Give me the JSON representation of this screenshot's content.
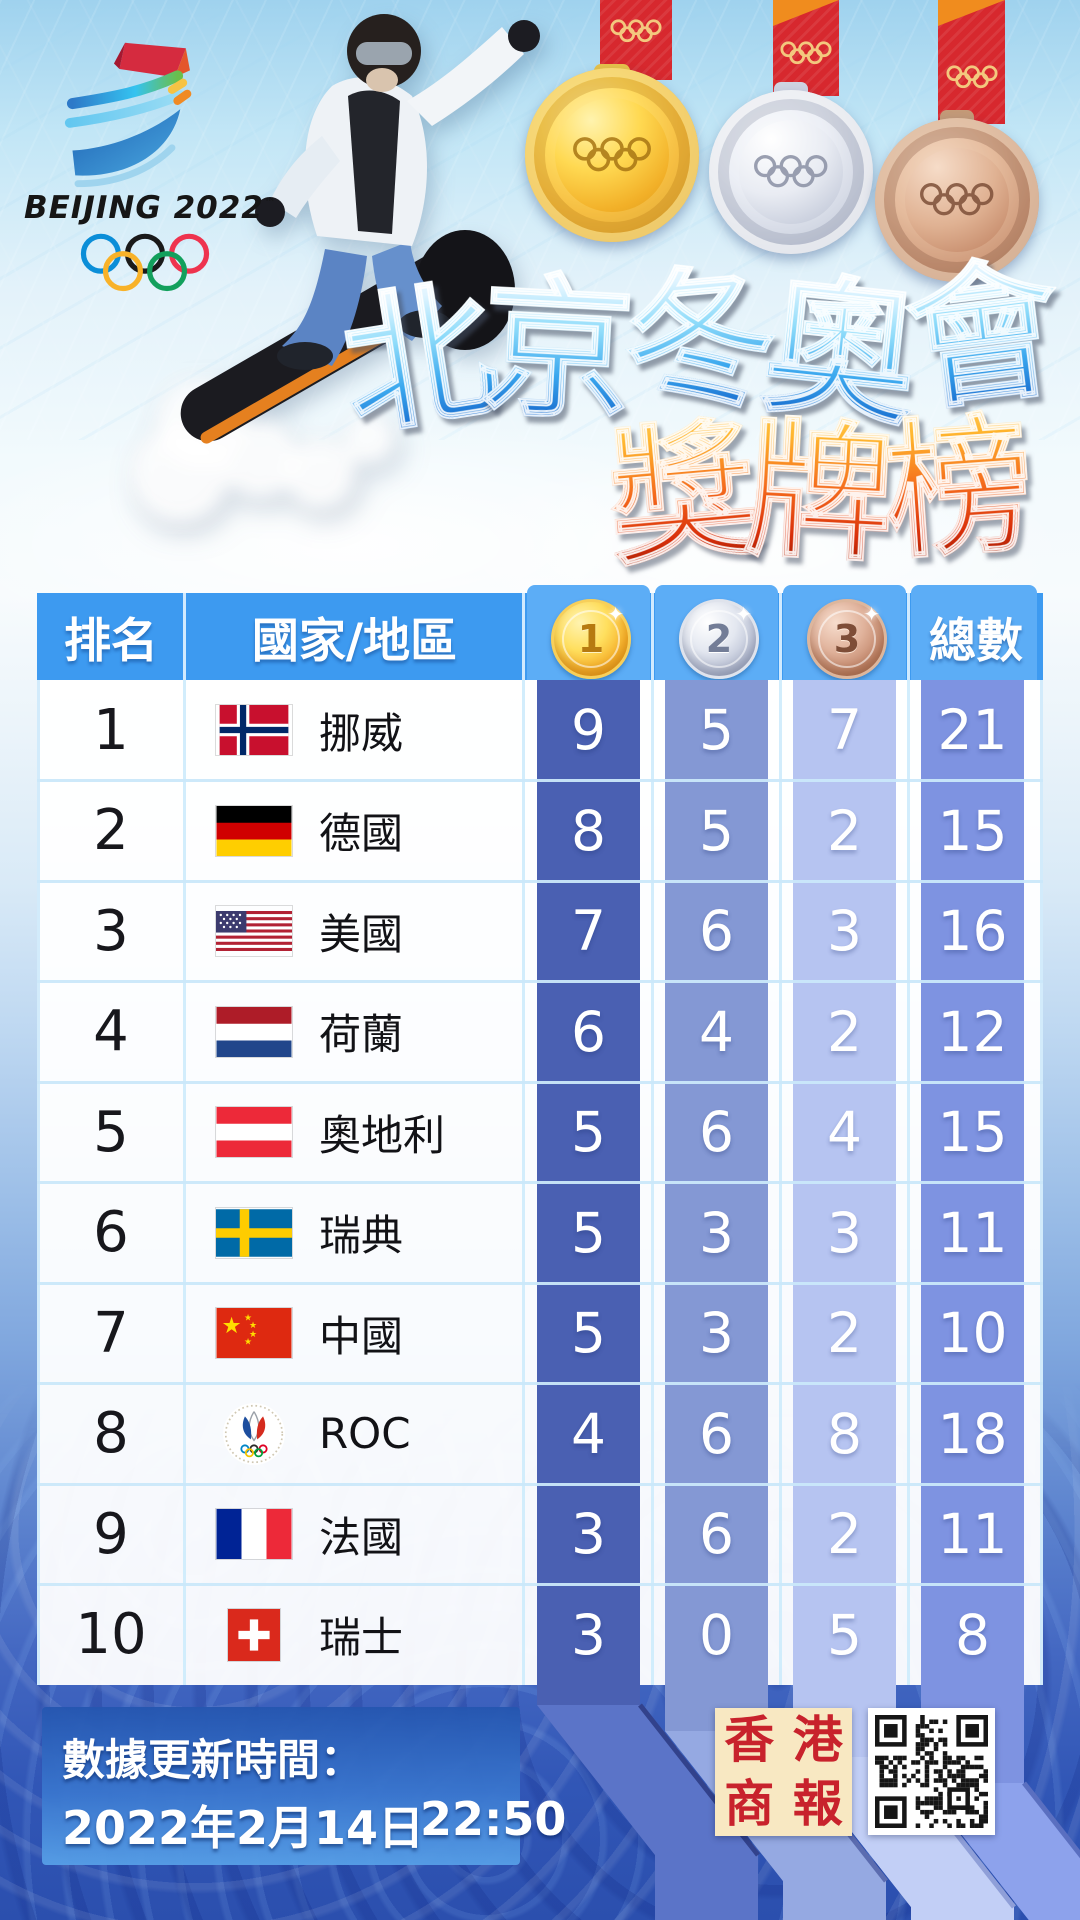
{
  "brand": {
    "name": "BEIJING 2022",
    "tm": "™"
  },
  "title": {
    "line1": "北京冬奧會",
    "line2": "獎牌榜"
  },
  "table_headers": {
    "rank": "排名",
    "country": "國家/地區",
    "gold_label": "1",
    "silver_label": "2",
    "bronze_label": "3",
    "total": "總數"
  },
  "chart_data": {
    "type": "table",
    "title": "北京冬奧會獎牌榜",
    "columns": [
      "排名",
      "國家/地區",
      "金牌",
      "銀牌",
      "銅牌",
      "總數"
    ],
    "rows": [
      {
        "rank": "1",
        "country": "挪威",
        "flag": "norway",
        "gold": 9,
        "silver": 5,
        "bronze": 7,
        "total": 21
      },
      {
        "rank": "2",
        "country": "德國",
        "flag": "germany",
        "gold": 8,
        "silver": 5,
        "bronze": 2,
        "total": 15
      },
      {
        "rank": "3",
        "country": "美國",
        "flag": "usa",
        "gold": 7,
        "silver": 6,
        "bronze": 3,
        "total": 16
      },
      {
        "rank": "4",
        "country": "荷蘭",
        "flag": "netherlands",
        "gold": 6,
        "silver": 4,
        "bronze": 2,
        "total": 12
      },
      {
        "rank": "5",
        "country": "奧地利",
        "flag": "austria",
        "gold": 5,
        "silver": 6,
        "bronze": 4,
        "total": 15
      },
      {
        "rank": "6",
        "country": "瑞典",
        "flag": "sweden",
        "gold": 5,
        "silver": 3,
        "bronze": 3,
        "total": 11
      },
      {
        "rank": "7",
        "country": "中國",
        "flag": "china",
        "gold": 5,
        "silver": 3,
        "bronze": 2,
        "total": 10
      },
      {
        "rank": "8",
        "country": "ROC",
        "flag": "roc",
        "gold": 4,
        "silver": 6,
        "bronze": 8,
        "total": 18
      },
      {
        "rank": "9",
        "country": "法國",
        "flag": "france",
        "gold": 3,
        "silver": 6,
        "bronze": 2,
        "total": 11
      },
      {
        "rank": "10",
        "country": "瑞士",
        "flag": "switzerland",
        "gold": 3,
        "silver": 0,
        "bronze": 5,
        "total": 8
      }
    ]
  },
  "footer": {
    "update_label": "數據更新時間：",
    "date": "2022年2月14日",
    "time": "22:50"
  },
  "stamp": {
    "char1": "香",
    "char2": "港",
    "char3": "商",
    "char4": "報",
    "full": "香港商報"
  },
  "colors": {
    "header_blue": "#3d9af0",
    "gold_column": "#4a60b2",
    "silver_column": "#8498d4",
    "bronze_column": "#b6c4f1",
    "total_column": "#7e93e1",
    "stamp_red": "#c8222c",
    "ribbon_red": "#d7282e",
    "title_ice": "#3aa7ee",
    "title_fire": "#f4691c"
  }
}
